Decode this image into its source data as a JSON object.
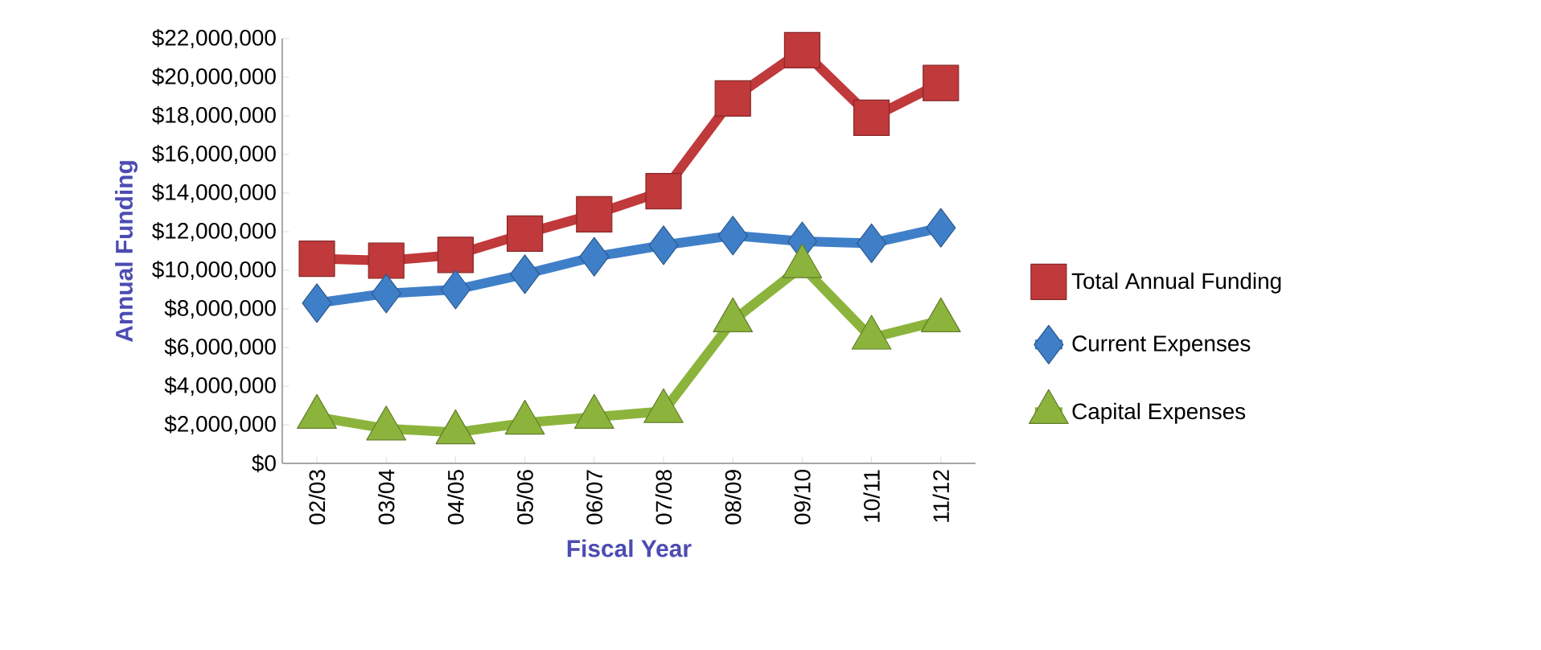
{
  "chart_data": {
    "type": "line",
    "xlabel": "Fiscal Year",
    "ylabel": "Annual Funding",
    "categories": [
      "02/03",
      "03/04",
      "04/05",
      "05/06",
      "06/07",
      "07/08",
      "08/09",
      "09/10",
      "10/11",
      "11/12"
    ],
    "series": [
      {
        "name": "Total Annual Funding",
        "color": "#c0393b",
        "marker": "square",
        "values": [
          10600000,
          10500000,
          10800000,
          11900000,
          12900000,
          14100000,
          18900000,
          21400000,
          17900000,
          19700000
        ]
      },
      {
        "name": "Current Expenses",
        "color": "#3f7fc8",
        "marker": "diamond",
        "values": [
          8300000,
          8800000,
          9000000,
          9800000,
          10700000,
          11300000,
          11800000,
          11500000,
          11400000,
          12200000
        ]
      },
      {
        "name": "Capital Expenses",
        "color": "#8cb43c",
        "marker": "triangle",
        "values": [
          2400000,
          1800000,
          1600000,
          2100000,
          2400000,
          2700000,
          7400000,
          10200000,
          6500000,
          7400000
        ]
      }
    ],
    "ylim": [
      0,
      22000000
    ],
    "yticks": [
      {
        "value": 0,
        "label": "$0"
      },
      {
        "value": 2000000,
        "label": "$2,000,000"
      },
      {
        "value": 4000000,
        "label": "$4,000,000"
      },
      {
        "value": 6000000,
        "label": "$6,000,000"
      },
      {
        "value": 8000000,
        "label": "$8,000,000"
      },
      {
        "value": 10000000,
        "label": "$10,000,000"
      },
      {
        "value": 12000000,
        "label": "$12,000,000"
      },
      {
        "value": 14000000,
        "label": "$14,000,000"
      },
      {
        "value": 16000000,
        "label": "$16,000,000"
      },
      {
        "value": 18000000,
        "label": "$18,000,000"
      },
      {
        "value": 20000000,
        "label": "$20,000,000"
      },
      {
        "value": 22000000,
        "label": "$22,000,000"
      }
    ],
    "grid": false,
    "legend": "right",
    "line_style": "solid"
  }
}
